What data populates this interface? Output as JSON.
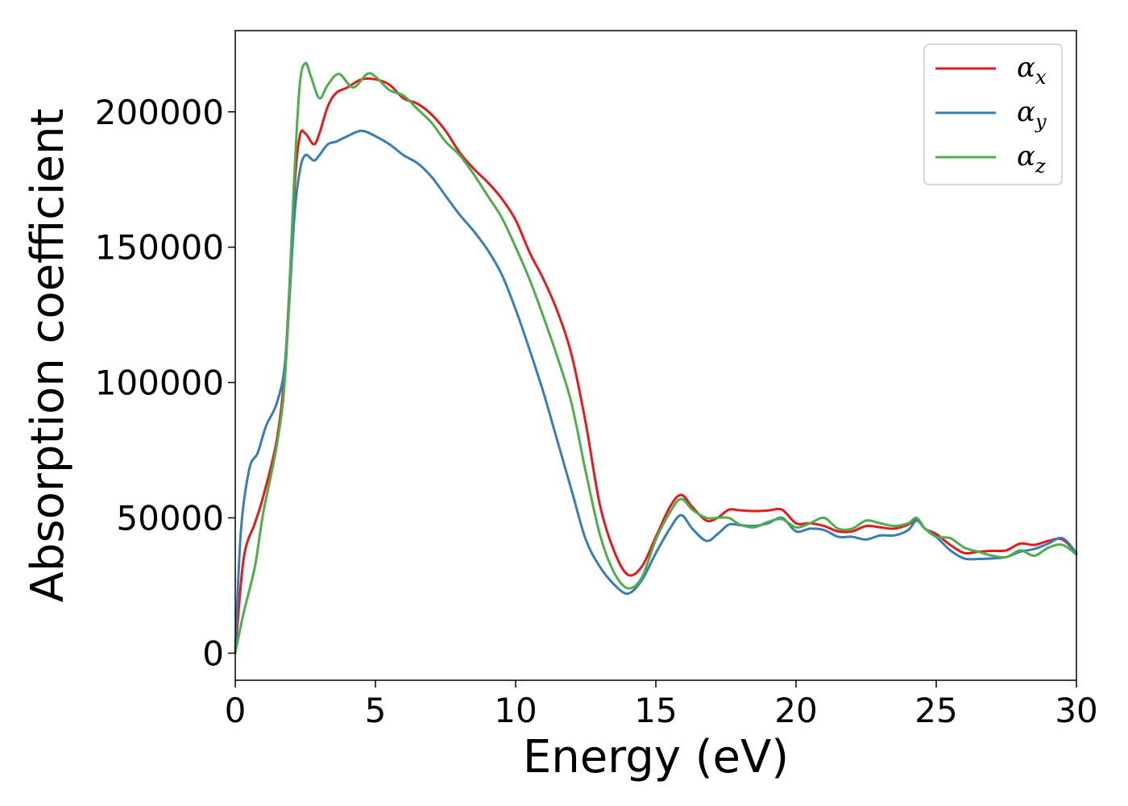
{
  "chart_data": {
    "type": "line",
    "title": "",
    "xlabel": "Energy (eV)",
    "ylabel": "Absorption coefficient",
    "xlim": [
      0,
      30
    ],
    "ylim": [
      -10000,
      230000
    ],
    "xticks": [
      0,
      5,
      10,
      15,
      20,
      25,
      30
    ],
    "xtick_labels": [
      "0",
      "5",
      "10",
      "15",
      "20",
      "25",
      "30"
    ],
    "yticks": [
      0,
      50000,
      100000,
      150000,
      200000
    ],
    "ytick_labels": [
      "0",
      "50000",
      "100000",
      "150000",
      "200000"
    ],
    "grid": false,
    "legend_position": "top-right",
    "series": [
      {
        "name": "αx",
        "name_main": "α",
        "name_sub": "x",
        "color": "#e41a1c",
        "points": [
          [
            0,
            0
          ],
          [
            0.3,
            35000
          ],
          [
            0.7,
            48000
          ],
          [
            1.0,
            58000
          ],
          [
            1.5,
            80000
          ],
          [
            1.8,
            110000
          ],
          [
            2.1,
            170000
          ],
          [
            2.3,
            191000
          ],
          [
            2.5,
            192000
          ],
          [
            2.8,
            188000
          ],
          [
            3.0,
            192000
          ],
          [
            3.3,
            202000
          ],
          [
            3.6,
            207000
          ],
          [
            4.0,
            209000
          ],
          [
            4.5,
            212000
          ],
          [
            5.0,
            212000
          ],
          [
            5.5,
            210000
          ],
          [
            6.0,
            205000
          ],
          [
            6.5,
            203000
          ],
          [
            7.0,
            199000
          ],
          [
            7.5,
            193000
          ],
          [
            8.0,
            185000
          ],
          [
            8.5,
            179000
          ],
          [
            9.0,
            174000
          ],
          [
            9.5,
            168000
          ],
          [
            10.0,
            160000
          ],
          [
            10.5,
            148000
          ],
          [
            11.0,
            138000
          ],
          [
            11.5,
            126000
          ],
          [
            12.0,
            110000
          ],
          [
            12.5,
            85000
          ],
          [
            13.0,
            55000
          ],
          [
            13.5,
            38000
          ],
          [
            14.0,
            29000
          ],
          [
            14.5,
            32000
          ],
          [
            15.0,
            43000
          ],
          [
            15.5,
            54000
          ],
          [
            15.9,
            58500
          ],
          [
            16.3,
            54000
          ],
          [
            16.8,
            49000
          ],
          [
            17.2,
            50000
          ],
          [
            17.6,
            53000
          ],
          [
            18.0,
            52800
          ],
          [
            18.5,
            52500
          ],
          [
            19.0,
            52700
          ],
          [
            19.5,
            53000
          ],
          [
            20.0,
            48000
          ],
          [
            20.5,
            48000
          ],
          [
            21.0,
            47000
          ],
          [
            21.5,
            45000
          ],
          [
            22.0,
            45000
          ],
          [
            22.5,
            47000
          ],
          [
            23.0,
            46500
          ],
          [
            23.5,
            46000
          ],
          [
            24.0,
            47500
          ],
          [
            24.3,
            49500
          ],
          [
            24.6,
            46000
          ],
          [
            25.0,
            44000
          ],
          [
            25.5,
            40000
          ],
          [
            26.0,
            37000
          ],
          [
            26.5,
            37500
          ],
          [
            27.0,
            37800
          ],
          [
            27.5,
            38000
          ],
          [
            28.0,
            40500
          ],
          [
            28.5,
            40000
          ],
          [
            29.0,
            41500
          ],
          [
            29.5,
            42000
          ],
          [
            30.0,
            37000
          ]
        ]
      },
      {
        "name": "αy",
        "name_main": "α",
        "name_sub": "y",
        "color": "#377eb8",
        "points": [
          [
            0,
            0
          ],
          [
            0.2,
            45000
          ],
          [
            0.5,
            68000
          ],
          [
            0.8,
            74000
          ],
          [
            1.1,
            84000
          ],
          [
            1.5,
            93000
          ],
          [
            1.8,
            110000
          ],
          [
            2.1,
            160000
          ],
          [
            2.3,
            178000
          ],
          [
            2.5,
            184000
          ],
          [
            2.8,
            182000
          ],
          [
            3.0,
            184000
          ],
          [
            3.3,
            188000
          ],
          [
            3.6,
            189000
          ],
          [
            4.0,
            191000
          ],
          [
            4.5,
            193000
          ],
          [
            5.0,
            191000
          ],
          [
            5.5,
            188000
          ],
          [
            6.0,
            184000
          ],
          [
            6.5,
            181000
          ],
          [
            7.0,
            176000
          ],
          [
            7.5,
            169000
          ],
          [
            8.0,
            162000
          ],
          [
            8.5,
            156000
          ],
          [
            9.0,
            149000
          ],
          [
            9.5,
            140000
          ],
          [
            10.0,
            127000
          ],
          [
            10.5,
            112000
          ],
          [
            11.0,
            96000
          ],
          [
            11.5,
            78000
          ],
          [
            12.0,
            60000
          ],
          [
            12.5,
            42000
          ],
          [
            13.0,
            32000
          ],
          [
            13.5,
            25500
          ],
          [
            14.0,
            22000
          ],
          [
            14.5,
            27000
          ],
          [
            15.0,
            37000
          ],
          [
            15.5,
            46000
          ],
          [
            15.9,
            51000
          ],
          [
            16.3,
            46000
          ],
          [
            16.8,
            41500
          ],
          [
            17.2,
            44000
          ],
          [
            17.6,
            47500
          ],
          [
            18.0,
            47300
          ],
          [
            18.5,
            47000
          ],
          [
            19.0,
            48000
          ],
          [
            19.5,
            50000
          ],
          [
            20.0,
            45000
          ],
          [
            20.5,
            46000
          ],
          [
            21.0,
            45500
          ],
          [
            21.5,
            43000
          ],
          [
            22.0,
            43000
          ],
          [
            22.5,
            42000
          ],
          [
            23.0,
            43500
          ],
          [
            23.5,
            43500
          ],
          [
            24.0,
            45500
          ],
          [
            24.3,
            49000
          ],
          [
            24.6,
            46000
          ],
          [
            25.0,
            43000
          ],
          [
            25.5,
            38000
          ],
          [
            26.0,
            35000
          ],
          [
            26.5,
            34800
          ],
          [
            27.0,
            35000
          ],
          [
            27.5,
            35500
          ],
          [
            28.0,
            37500
          ],
          [
            28.5,
            38500
          ],
          [
            29.0,
            40500
          ],
          [
            29.5,
            42500
          ],
          [
            30.0,
            37000
          ]
        ]
      },
      {
        "name": "αz",
        "name_main": "α",
        "name_sub": "z",
        "color": "#4daf4a",
        "points": [
          [
            0,
            0
          ],
          [
            0.3,
            15000
          ],
          [
            0.7,
            32000
          ],
          [
            1.0,
            52000
          ],
          [
            1.5,
            78000
          ],
          [
            1.8,
            106000
          ],
          [
            2.1,
            175000
          ],
          [
            2.3,
            210000
          ],
          [
            2.5,
            218000
          ],
          [
            2.7,
            213000
          ],
          [
            3.0,
            205000
          ],
          [
            3.3,
            210000
          ],
          [
            3.7,
            214000
          ],
          [
            4.2,
            209000
          ],
          [
            4.7,
            214000
          ],
          [
            5.0,
            213000
          ],
          [
            5.5,
            208000
          ],
          [
            6.0,
            206000
          ],
          [
            6.5,
            201000
          ],
          [
            7.0,
            196000
          ],
          [
            7.5,
            189000
          ],
          [
            8.0,
            184000
          ],
          [
            8.5,
            177000
          ],
          [
            9.0,
            169000
          ],
          [
            9.5,
            161000
          ],
          [
            10.0,
            150000
          ],
          [
            10.5,
            138000
          ],
          [
            11.0,
            124000
          ],
          [
            11.5,
            109000
          ],
          [
            12.0,
            92000
          ],
          [
            12.5,
            67000
          ],
          [
            13.0,
            44000
          ],
          [
            13.5,
            30000
          ],
          [
            14.0,
            24000
          ],
          [
            14.5,
            28000
          ],
          [
            15.0,
            42000
          ],
          [
            15.5,
            52000
          ],
          [
            15.9,
            57000
          ],
          [
            16.3,
            53000
          ],
          [
            16.8,
            50000
          ],
          [
            17.2,
            50000
          ],
          [
            17.6,
            50000
          ],
          [
            18.0,
            47500
          ],
          [
            18.5,
            46500
          ],
          [
            19.0,
            48500
          ],
          [
            19.5,
            49500
          ],
          [
            20.0,
            46500
          ],
          [
            20.5,
            48000
          ],
          [
            21.0,
            50000
          ],
          [
            21.5,
            46000
          ],
          [
            22.0,
            46000
          ],
          [
            22.5,
            49000
          ],
          [
            23.0,
            48000
          ],
          [
            23.5,
            47000
          ],
          [
            24.0,
            48000
          ],
          [
            24.3,
            50000
          ],
          [
            24.6,
            46000
          ],
          [
            25.0,
            43000
          ],
          [
            25.5,
            42500
          ],
          [
            26.0,
            39000
          ],
          [
            26.5,
            37500
          ],
          [
            27.0,
            36000
          ],
          [
            27.5,
            35500
          ],
          [
            28.0,
            38000
          ],
          [
            28.5,
            36000
          ],
          [
            29.0,
            39000
          ],
          [
            29.5,
            40000
          ],
          [
            30.0,
            36500
          ]
        ]
      }
    ]
  }
}
